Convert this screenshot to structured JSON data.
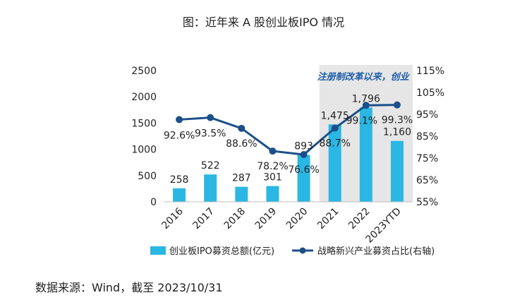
{
  "title": "图：近年来 A 股创业板IPO 情况",
  "source": "数据来源：Wind，截至 2023/10/31",
  "colors": {
    "bar": "#2bb7e3",
    "line": "#1b4f8a",
    "highlight": "#e6e6e6",
    "annotation": "#1f5ea8"
  },
  "chart_data": {
    "type": "bar",
    "categories": [
      "2016",
      "2017",
      "2018",
      "2019",
      "2020",
      "2021",
      "2022",
      "2023YTD"
    ],
    "series": [
      {
        "name": "创业板IPO募资总额(亿元)",
        "type": "bar",
        "axis": "left",
        "values": [
          258,
          522,
          287,
          301,
          893,
          1475,
          1796,
          1160
        ],
        "labels": [
          "258",
          "522",
          "287",
          "301",
          "893",
          "1,475",
          "1,796",
          "1,160"
        ]
      },
      {
        "name": "战略新兴产业募资占比(右轴)",
        "type": "line",
        "axis": "right",
        "values": [
          92.6,
          93.5,
          88.6,
          78.2,
          76.6,
          88.7,
          99.1,
          99.3
        ],
        "labels": [
          "92.6%",
          "93.5%",
          "88.6%",
          "78.2%",
          "76.6%",
          "88.7%",
          "99.1%",
          "99.3%"
        ]
      }
    ],
    "ylim_left": [
      0,
      2500
    ],
    "yticks_left": [
      "0",
      "500",
      "1000",
      "1500",
      "2000",
      "2500"
    ],
    "ylim_right": [
      55,
      115
    ],
    "yticks_right": [
      "55%",
      "65%",
      "75%",
      "85%",
      "95%",
      "105%",
      "115%"
    ],
    "highlight_range": [
      "2021",
      "2023YTD"
    ],
    "annotation": "注册制改革以来，创业",
    "legend_position": "bottom",
    "grid": false
  }
}
